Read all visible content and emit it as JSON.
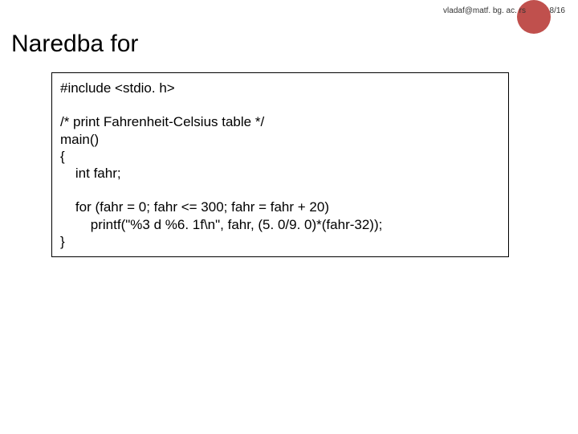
{
  "email": "vladaf@matf. bg. ac. rs",
  "page_number": "8/16",
  "dot_color": "#c0504d",
  "title": "Naredba for",
  "code": {
    "l0": "#include <stdio. h>",
    "l1": "/* print Fahrenheit-Celsius table */",
    "l2": "main()",
    "l3": "{",
    "l4": "    int fahr;",
    "l5": "    for (fahr = 0; fahr <= 300; fahr = fahr + 20)",
    "l6": "        printf(\"%3 d %6. 1f\\n\", fahr, (5. 0/9. 0)*(fahr-32));",
    "l7": "}"
  },
  "box_border_color": "#000000",
  "background_color": "#ffffff",
  "text_color": "#000000",
  "title_fontsize": 30,
  "code_fontsize": 17
}
